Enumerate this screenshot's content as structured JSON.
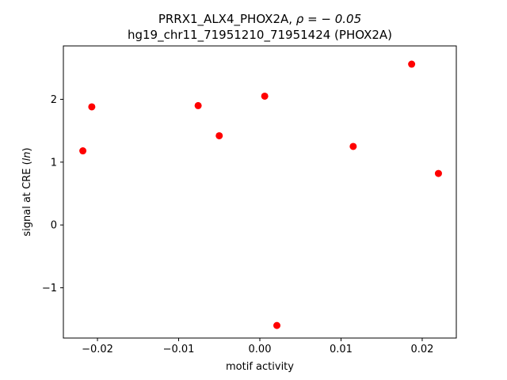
{
  "chart_data": {
    "type": "scatter",
    "title_line1_prefix": "PRRX1_ALX4_PHOX2A, ",
    "title_line1_rho": "ρ = − 0.05",
    "title_line2": "hg19_chr11_71951210_71951424 (PHOX2A)",
    "xlabel": "motif activity",
    "ylabel_prefix": "signal at CRE (",
    "ylabel_italic": "ln",
    "ylabel_suffix": ")",
    "xlim": [
      -0.0242,
      0.0242
    ],
    "ylim": [
      -1.8,
      2.85
    ],
    "x_ticks": [
      {
        "value": -0.02,
        "label": "−0.02"
      },
      {
        "value": -0.01,
        "label": "−0.01"
      },
      {
        "value": 0.0,
        "label": "0.00"
      },
      {
        "value": 0.01,
        "label": "0.01"
      },
      {
        "value": 0.02,
        "label": "0.02"
      }
    ],
    "y_ticks": [
      {
        "value": -1,
        "label": "−1"
      },
      {
        "value": 0,
        "label": "0"
      },
      {
        "value": 1,
        "label": "1"
      },
      {
        "value": 2,
        "label": "2"
      }
    ],
    "marker_color": "#ff0000",
    "grid": false,
    "series": [
      {
        "points": [
          {
            "x": -0.0218,
            "y": 1.18
          },
          {
            "x": -0.0207,
            "y": 1.88
          },
          {
            "x": -0.0076,
            "y": 1.9
          },
          {
            "x": -0.005,
            "y": 1.42
          },
          {
            "x": 0.0006,
            "y": 2.05
          },
          {
            "x": 0.0021,
            "y": -1.6
          },
          {
            "x": 0.0115,
            "y": 1.25
          },
          {
            "x": 0.0187,
            "y": 2.56
          },
          {
            "x": 0.022,
            "y": 0.82
          }
        ]
      }
    ]
  }
}
